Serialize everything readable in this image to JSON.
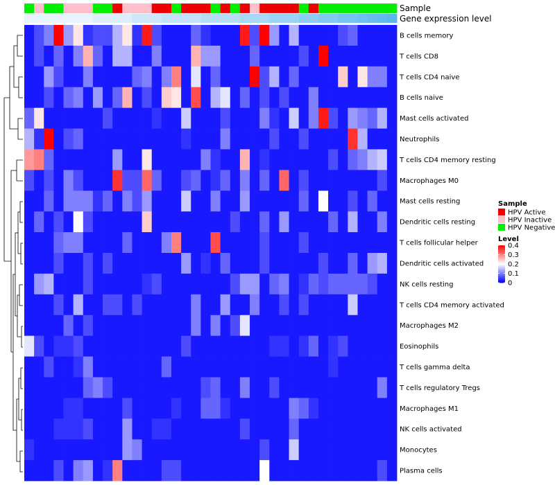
{
  "chart_data": {
    "type": "heatmap",
    "annotation_rows": [
      "Sample",
      "Gene expression level"
    ],
    "rows": [
      "B cells memory",
      "T cells CD8",
      "T cells CD4 naive",
      "B cells naive",
      "Mast cells activated",
      "Neutrophils",
      "T cells CD4 memory resting",
      "Macrophages M0",
      "Mast cells resting",
      "Dendritic cells resting",
      "T cells follicular helper",
      "Dendritic cells activated",
      "NK cells resting",
      "T cells CD4 memory activated",
      "Macrophages M2",
      "Eosinophils",
      "T cells gamma delta",
      "T cells regulatory  Tregs",
      "Macrophages M1",
      "NK cells activated",
      "Monocytes",
      "Plasma cells"
    ],
    "sample_groups": [
      "N",
      "I",
      "N",
      "N",
      "I",
      "I",
      "I",
      "N",
      "N",
      "A",
      "I",
      "I",
      "I",
      "A",
      "A",
      "N",
      "A",
      "A",
      "A",
      "N",
      "A",
      "N",
      "A",
      "I",
      "A",
      "A",
      "A",
      "A",
      "N",
      "A",
      "N",
      "N",
      "N",
      "N",
      "N",
      "N",
      "N",
      "N"
    ],
    "values": [
      [
        0.02,
        0.06,
        0.1,
        0.4,
        0.12,
        0.22,
        0.04,
        0.06,
        0.06,
        0.14,
        0.22,
        0.04,
        0.38,
        0.06,
        0.02,
        0.02,
        0.02,
        0.08,
        0.04,
        0.02,
        0.02,
        0.02,
        0.38,
        0.06,
        0.4,
        0.12,
        0.02,
        0.14,
        0.02,
        0.02,
        0.02,
        0.02,
        0.06,
        0.08,
        0.02,
        0.02,
        0.02,
        0.02
      ],
      [
        0.02,
        0.06,
        0.02,
        0.08,
        0.02,
        0.1,
        0.26,
        0.08,
        0.02,
        0.14,
        0.14,
        0.02,
        0.02,
        0.1,
        0.02,
        0.02,
        0.02,
        0.26,
        0.12,
        0.12,
        0.02,
        0.02,
        0.02,
        0.08,
        0.02,
        0.02,
        0.02,
        0.02,
        0.06,
        0.02,
        0.4,
        0.02,
        0.02,
        0.02,
        0.02,
        0.02,
        0.02,
        0.02
      ],
      [
        0.02,
        0.02,
        0.12,
        0.06,
        0.02,
        0.02,
        0.1,
        0.02,
        0.02,
        0.02,
        0.02,
        0.08,
        0.1,
        0.02,
        0.1,
        0.3,
        0.02,
        0.18,
        0.02,
        0.08,
        0.02,
        0.02,
        0.02,
        0.4,
        0.06,
        0.14,
        0.02,
        0.08,
        0.02,
        0.02,
        0.02,
        0.02,
        0.24,
        0.02,
        0.22,
        0.1,
        0.1,
        0.02
      ],
      [
        0.02,
        0.02,
        0.06,
        0.02,
        0.08,
        0.1,
        0.02,
        0.12,
        0.02,
        0.08,
        0.26,
        0.02,
        0.06,
        0.02,
        0.24,
        0.22,
        0.02,
        0.34,
        0.02,
        0.14,
        0.18,
        0.02,
        0.08,
        0.02,
        0.06,
        0.02,
        0.06,
        0.02,
        0.02,
        0.1,
        0.02,
        0.02,
        0.02,
        0.02,
        0.02,
        0.02,
        0.02,
        0.02
      ],
      [
        0.08,
        0.22,
        0.02,
        0.02,
        0.02,
        0.02,
        0.02,
        0.02,
        0.06,
        0.02,
        0.02,
        0.02,
        0.02,
        0.04,
        0.02,
        0.02,
        0.16,
        0.02,
        0.02,
        0.02,
        0.06,
        0.02,
        0.02,
        0.02,
        0.1,
        0.04,
        0.02,
        0.16,
        0.02,
        0.1,
        0.38,
        0.06,
        0.02,
        0.12,
        0.1,
        0.08,
        0.14,
        0.02
      ],
      [
        0.14,
        0.04,
        0.4,
        0.02,
        0.06,
        0.08,
        0.02,
        0.02,
        0.02,
        0.02,
        0.02,
        0.02,
        0.02,
        0.02,
        0.02,
        0.02,
        0.04,
        0.02,
        0.02,
        0.02,
        0.1,
        0.02,
        0.02,
        0.02,
        0.02,
        0.06,
        0.02,
        0.02,
        0.06,
        0.02,
        0.02,
        0.02,
        0.02,
        0.36,
        0.14,
        0.02,
        0.02,
        0.02
      ],
      [
        0.28,
        0.3,
        0.08,
        0.02,
        0.02,
        0.02,
        0.02,
        0.02,
        0.02,
        0.12,
        0.02,
        0.02,
        0.22,
        0.02,
        0.02,
        0.02,
        0.02,
        0.02,
        0.1,
        0.04,
        0.02,
        0.02,
        0.26,
        0.02,
        0.04,
        0.02,
        0.02,
        0.02,
        0.02,
        0.02,
        0.02,
        0.06,
        0.02,
        0.08,
        0.1,
        0.14,
        0.16,
        0.02
      ],
      [
        0.06,
        0.02,
        0.06,
        0.02,
        0.1,
        0.06,
        0.02,
        0.02,
        0.02,
        0.36,
        0.06,
        0.06,
        0.32,
        0.08,
        0.02,
        0.02,
        0.06,
        0.08,
        0.02,
        0.04,
        0.08,
        0.02,
        0.1,
        0.02,
        0.08,
        0.02,
        0.32,
        0.02,
        0.06,
        0.02,
        0.02,
        0.02,
        0.02,
        0.02,
        0.02,
        0.02,
        0.06,
        0.02
      ],
      [
        0.02,
        0.02,
        0.08,
        0.02,
        0.1,
        0.1,
        0.1,
        0.04,
        0.08,
        0.02,
        0.1,
        0.06,
        0.12,
        0.02,
        0.02,
        0.02,
        0.16,
        0.02,
        0.02,
        0.1,
        0.02,
        0.02,
        0.12,
        0.02,
        0.02,
        0.02,
        0.02,
        0.02,
        0.08,
        0.02,
        0.2,
        0.02,
        0.02,
        0.06,
        0.02,
        0.08,
        0.02,
        0.02
      ],
      [
        0.02,
        0.08,
        0.02,
        0.06,
        0.02,
        0.2,
        0.06,
        0.02,
        0.02,
        0.02,
        0.02,
        0.02,
        0.24,
        0.02,
        0.02,
        0.02,
        0.02,
        0.02,
        0.02,
        0.02,
        0.02,
        0.06,
        0.02,
        0.02,
        0.08,
        0.02,
        0.12,
        0.02,
        0.02,
        0.02,
        0.02,
        0.08,
        0.02,
        0.14,
        0.02,
        0.02,
        0.1,
        0.02
      ],
      [
        0.02,
        0.02,
        0.02,
        0.08,
        0.1,
        0.1,
        0.02,
        0.02,
        0.02,
        0.02,
        0.08,
        0.02,
        0.02,
        0.02,
        0.1,
        0.3,
        0.02,
        0.02,
        0.02,
        0.34,
        0.02,
        0.02,
        0.02,
        0.02,
        0.06,
        0.02,
        0.02,
        0.02,
        0.06,
        0.02,
        0.02,
        0.02,
        0.02,
        0.02,
        0.02,
        0.02,
        0.02,
        0.02
      ],
      [
        0.02,
        0.02,
        0.02,
        0.06,
        0.02,
        0.02,
        0.06,
        0.02,
        0.06,
        0.02,
        0.02,
        0.02,
        0.02,
        0.02,
        0.02,
        0.02,
        0.12,
        0.02,
        0.04,
        0.02,
        0.08,
        0.02,
        0.02,
        0.02,
        0.06,
        0.02,
        0.02,
        0.02,
        0.02,
        0.02,
        0.06,
        0.02,
        0.02,
        0.08,
        0.02,
        0.12,
        0.14,
        0.02
      ],
      [
        0.02,
        0.12,
        0.14,
        0.02,
        0.02,
        0.02,
        0.06,
        0.02,
        0.02,
        0.02,
        0.02,
        0.02,
        0.04,
        0.06,
        0.02,
        0.02,
        0.02,
        0.02,
        0.02,
        0.02,
        0.02,
        0.06,
        0.12,
        0.12,
        0.02,
        0.08,
        0.1,
        0.02,
        0.04,
        0.08,
        0.06,
        0.08,
        0.08,
        0.08,
        0.08,
        0.06,
        0.02,
        0.02
      ],
      [
        0.02,
        0.02,
        0.02,
        0.06,
        0.02,
        0.14,
        0.02,
        0.02,
        0.06,
        0.06,
        0.02,
        0.06,
        0.02,
        0.02,
        0.02,
        0.02,
        0.02,
        0.1,
        0.02,
        0.02,
        0.12,
        0.02,
        0.02,
        0.1,
        0.02,
        0.02,
        0.06,
        0.02,
        0.06,
        0.02,
        0.02,
        0.02,
        0.02,
        0.16,
        0.02,
        0.02,
        0.02,
        0.02
      ],
      [
        0.02,
        0.02,
        0.02,
        0.02,
        0.08,
        0.02,
        0.06,
        0.02,
        0.02,
        0.02,
        0.02,
        0.02,
        0.02,
        0.02,
        0.02,
        0.02,
        0.02,
        0.1,
        0.02,
        0.1,
        0.02,
        0.06,
        0.18,
        0.02,
        0.02,
        0.02,
        0.02,
        0.02,
        0.02,
        0.02,
        0.02,
        0.02,
        0.02,
        0.02,
        0.02,
        0.02,
        0.02,
        0.02
      ],
      [
        0.18,
        0.06,
        0.02,
        0.04,
        0.04,
        0.06,
        0.02,
        0.02,
        0.02,
        0.02,
        0.02,
        0.02,
        0.02,
        0.02,
        0.02,
        0.02,
        0.06,
        0.02,
        0.02,
        0.02,
        0.02,
        0.02,
        0.02,
        0.02,
        0.02,
        0.04,
        0.04,
        0.02,
        0.04,
        0.08,
        0.02,
        0.04,
        0.06,
        0.02,
        0.02,
        0.02,
        0.02,
        0.02
      ],
      [
        0.02,
        0.02,
        0.06,
        0.02,
        0.02,
        0.04,
        0.1,
        0.02,
        0.02,
        0.02,
        0.02,
        0.02,
        0.02,
        0.02,
        0.08,
        0.02,
        0.02,
        0.02,
        0.02,
        0.02,
        0.02,
        0.02,
        0.02,
        0.02,
        0.02,
        0.02,
        0.02,
        0.02,
        0.02,
        0.02,
        0.02,
        0.04,
        0.02,
        0.02,
        0.02,
        0.02,
        0.02,
        0.02
      ],
      [
        0.02,
        0.02,
        0.02,
        0.02,
        0.02,
        0.02,
        0.08,
        0.1,
        0.06,
        0.02,
        0.02,
        0.02,
        0.02,
        0.02,
        0.02,
        0.02,
        0.02,
        0.02,
        0.06,
        0.08,
        0.02,
        0.02,
        0.1,
        0.02,
        0.02,
        0.06,
        0.02,
        0.02,
        0.02,
        0.02,
        0.02,
        0.02,
        0.02,
        0.02,
        0.02,
        0.02,
        0.1,
        0.02
      ],
      [
        0.02,
        0.02,
        0.02,
        0.02,
        0.04,
        0.04,
        0.02,
        0.02,
        0.02,
        0.02,
        0.06,
        0.02,
        0.02,
        0.02,
        0.02,
        0.04,
        0.02,
        0.02,
        0.08,
        0.08,
        0.04,
        0.02,
        0.02,
        0.02,
        0.02,
        0.02,
        0.02,
        0.1,
        0.08,
        0.04,
        0.02,
        0.02,
        0.02,
        0.02,
        0.02,
        0.02,
        0.02,
        0.02
      ],
      [
        0.02,
        0.02,
        0.02,
        0.04,
        0.04,
        0.04,
        0.06,
        0.02,
        0.02,
        0.02,
        0.12,
        0.02,
        0.02,
        0.04,
        0.04,
        0.02,
        0.02,
        0.02,
        0.02,
        0.02,
        0.02,
        0.02,
        0.06,
        0.02,
        0.02,
        0.02,
        0.02,
        0.08,
        0.02,
        0.02,
        0.02,
        0.02,
        0.02,
        0.02,
        0.02,
        0.02,
        0.02,
        0.02
      ],
      [
        0.04,
        0.02,
        0.02,
        0.02,
        0.02,
        0.02,
        0.02,
        0.02,
        0.02,
        0.02,
        0.12,
        0.1,
        0.02,
        0.02,
        0.02,
        0.02,
        0.02,
        0.02,
        0.02,
        0.02,
        0.02,
        0.02,
        0.02,
        0.02,
        0.06,
        0.02,
        0.02,
        0.16,
        0.02,
        0.02,
        0.02,
        0.02,
        0.02,
        0.02,
        0.02,
        0.02,
        0.02,
        0.02
      ],
      [
        0.02,
        0.02,
        0.02,
        0.06,
        0.02,
        0.1,
        0.12,
        0.02,
        0.04,
        0.3,
        0.02,
        0.02,
        0.02,
        0.02,
        0.06,
        0.06,
        0.02,
        0.02,
        0.02,
        0.02,
        0.02,
        0.02,
        0.02,
        0.02,
        0.2,
        0.02,
        0.02,
        0.02,
        0.02,
        0.02,
        0.02,
        0.02,
        0.02,
        0.02,
        0.02,
        0.02,
        0.06,
        0.02
      ]
    ],
    "expression_level": [
      0.78,
      0.78,
      0.78,
      0.78,
      0.78,
      0.78,
      0.78,
      0.8,
      0.8,
      0.8,
      0.8,
      0.82,
      0.82,
      0.82,
      0.84,
      0.84,
      0.84,
      0.84,
      0.86,
      0.86,
      0.86,
      0.86,
      0.88,
      0.88,
      0.88,
      0.9,
      0.9,
      0.9,
      0.92,
      0.92,
      0.94,
      0.94,
      0.96,
      0.96,
      0.97,
      0.98,
      0.99,
      1.0
    ],
    "legend": {
      "sample_title": "Sample",
      "sample_entries": [
        {
          "key": "A",
          "label": "HPV Active",
          "color": "#ee0000"
        },
        {
          "key": "I",
          "label": "HPV Inactive",
          "color": "#ffc0cb"
        },
        {
          "key": "N",
          "label": "HPV Negative",
          "color": "#00ee00"
        }
      ],
      "level_title": "Level",
      "level_ticks": [
        {
          "value": 0.4,
          "label": "0.4"
        },
        {
          "value": 0.3,
          "label": "0.3"
        },
        {
          "value": 0.2,
          "label": "0.2"
        },
        {
          "value": 0.1,
          "label": "0.1"
        },
        {
          "value": 0,
          "label": "0"
        }
      ],
      "level_range": [
        0,
        0.4
      ],
      "level_colors": [
        "#0000ff",
        "#ffffff",
        "#ff0000"
      ],
      "expression_colors": [
        "#e8f3fb",
        "#5bb8ee"
      ]
    }
  }
}
